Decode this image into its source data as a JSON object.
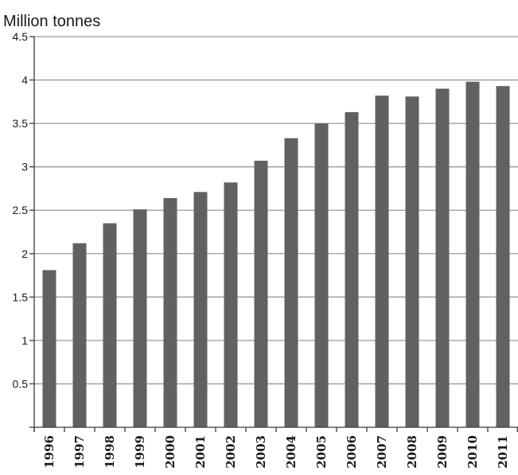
{
  "chart_data": {
    "type": "bar",
    "ylabel": "Million tonnes",
    "categories": [
      "1996",
      "1997",
      "1998",
      "1999",
      "2000",
      "2001",
      "2002",
      "2003",
      "2004",
      "2005",
      "2006",
      "2007",
      "2008",
      "2009",
      "2010",
      "2011"
    ],
    "values": [
      1.81,
      2.12,
      2.35,
      2.51,
      2.64,
      2.71,
      2.82,
      3.07,
      3.33,
      3.5,
      3.63,
      3.82,
      3.81,
      3.9,
      3.98,
      3.93
    ],
    "ylim": [
      0,
      4.5
    ],
    "yticks": [
      0,
      0.5,
      1,
      1.5,
      2,
      2.5,
      3,
      3.5,
      4,
      4.5
    ],
    "ytick_labels": [
      "",
      "0.5",
      "1",
      "1.5",
      "2",
      "2.5",
      "3",
      "3.5",
      "4",
      "4.5"
    ],
    "grid": true,
    "colors": {
      "bar": "#616161",
      "grid": "#9a9a9a",
      "axis": "#3a3a3a",
      "text": "#1a1a1a"
    }
  }
}
